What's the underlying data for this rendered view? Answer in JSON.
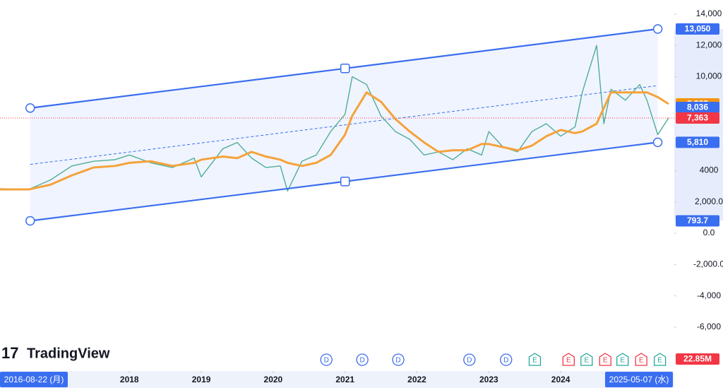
{
  "chart_data": {
    "type": "line",
    "brand": "TradingView",
    "x": [
      2016.2,
      2016.6,
      2016.9,
      2017.2,
      2017.5,
      2017.8,
      2018.0,
      2018.3,
      2018.6,
      2018.9,
      2019.0,
      2019.3,
      2019.5,
      2019.7,
      2019.9,
      2020.1,
      2020.2,
      2020.4,
      2020.6,
      2020.8,
      2021.0,
      2021.1,
      2021.3,
      2021.5,
      2021.7,
      2021.9,
      2022.1,
      2022.3,
      2022.5,
      2022.7,
      2022.9,
      2023.0,
      2023.2,
      2023.4,
      2023.6,
      2023.8,
      2024.0,
      2024.2,
      2024.3,
      2024.5,
      2024.6,
      2024.7,
      2024.9,
      2025.1,
      2025.2,
      2025.35,
      2025.5
    ],
    "series": [
      {
        "name": "Price",
        "color": "#4fae95",
        "values": [
          2850,
          2800,
          3400,
          4300,
          4600,
          4700,
          5000,
          4500,
          4200,
          4800,
          3600,
          5400,
          5800,
          4800,
          4200,
          4300,
          2700,
          4600,
          5000,
          6500,
          7600,
          10000,
          9500,
          7500,
          6500,
          6000,
          5000,
          5200,
          4700,
          5400,
          5000,
          6500,
          5500,
          5200,
          6500,
          7000,
          6200,
          6800,
          9000,
          12000,
          7000,
          9200,
          8500,
          9500,
          8500,
          6300,
          7363
        ]
      },
      {
        "name": "MA",
        "color": "#f5a23a",
        "values": [
          2800,
          2800,
          3100,
          3700,
          4200,
          4300,
          4500,
          4600,
          4300,
          4500,
          4700,
          4900,
          4800,
          5200,
          4900,
          4700,
          4500,
          4300,
          4500,
          5000,
          6300,
          7500,
          9000,
          8400,
          7300,
          6500,
          5800,
          5200,
          5300,
          5300,
          5700,
          5700,
          5500,
          5300,
          5600,
          6200,
          6600,
          6400,
          6500,
          7000,
          8000,
          9000,
          9000,
          9000,
          9000,
          8700,
          8262
        ]
      }
    ],
    "xlim": [
      2016.2,
      2025.58
    ],
    "xticks": [
      2018,
      2019,
      2020,
      2021,
      2022,
      2023,
      2024
    ],
    "ylim": [
      -8800,
      14900
    ],
    "yticks": [
      {
        "value": 14000,
        "label": "14,000"
      },
      {
        "value": 12000,
        "label": "12,000"
      },
      {
        "value": 10000,
        "label": "10,000"
      },
      4000,
      {
        "value": 2000,
        "label": "2,000.0"
      },
      {
        "value": 0,
        "label": "0.0"
      },
      {
        "value": -2000,
        "label": "-2,000.0"
      },
      {
        "value": -4000,
        "label": "-4,000"
      },
      {
        "value": -6000,
        "label": "-6,000"
      }
    ],
    "channel": {
      "color": "#3a6ef0",
      "upper": {
        "x": [
          2016.62,
          2021.0,
          2025.35
        ],
        "values": [
          8000,
          10530,
          13050
        ]
      },
      "lower": {
        "x": [
          2016.62,
          2021.0,
          2025.35
        ],
        "values": [
          793.7,
          3310,
          5810
        ]
      }
    },
    "price_labels": [
      {
        "value": 13050,
        "label": "13,050",
        "color": "#3a6ef0"
      },
      {
        "value": 8262,
        "label": "8,262",
        "color": "#f5940f"
      },
      {
        "value": 8036,
        "label": "8,036",
        "color": "#3a6ef0"
      },
      {
        "value": 7363,
        "label": "7,363",
        "color": "#f23645"
      },
      {
        "value": 5810,
        "label": "5,810",
        "color": "#3a6ef0"
      },
      {
        "value": 793.7,
        "label": "793.7",
        "color": "#3a6ef0"
      }
    ],
    "volume_label": "22.85M",
    "date_labels": [
      {
        "value": 2016.62,
        "label": "2016-08-22 (月)"
      },
      {
        "value": 2025.35,
        "label": "2025-05-07 (水)"
      }
    ],
    "events": [
      {
        "label": "D",
        "x": 2020.74
      },
      {
        "label": "D",
        "x": 2021.24
      },
      {
        "label": "D",
        "x": 2021.74
      },
      {
        "label": "D",
        "x": 2022.73
      },
      {
        "label": "D",
        "x": 2023.24
      },
      {
        "label": "E",
        "x": 2023.64
      },
      {
        "label": "E",
        "x": 2024.11
      },
      {
        "label": "E",
        "x": 2024.36
      },
      {
        "label": "E",
        "x": 2024.62
      },
      {
        "label": "E",
        "x": 2024.86
      },
      {
        "label": "E",
        "x": 2025.12
      },
      {
        "label": "E",
        "x": 2025.38
      }
    ]
  }
}
